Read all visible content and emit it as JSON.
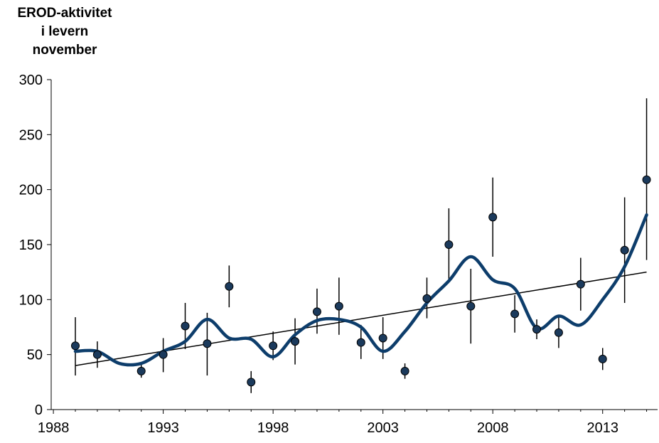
{
  "chart_data": {
    "type": "scatter",
    "title": "",
    "ylabel_lines": [
      "EROD-aktivitet",
      "i levern",
      "november"
    ],
    "xlabel": "",
    "xlim": [
      1987.9,
      2015.5
    ],
    "ylim": [
      0,
      300
    ],
    "x_ticks": [
      1988,
      1993,
      1998,
      2003,
      2008,
      2013
    ],
    "x_tick_labels": [
      "1988",
      "1993",
      "1998",
      "2003",
      "2008",
      "2013"
    ],
    "y_ticks": [
      0,
      50,
      100,
      150,
      200,
      250,
      300
    ],
    "y_tick_labels": [
      "0",
      "50",
      "100",
      "150",
      "200",
      "250",
      "300"
    ],
    "grid": false,
    "colors": {
      "points": "#1b3a5c",
      "smooth": "#0d3d6b",
      "trend": "#000000",
      "errorbars": "#000000"
    },
    "points": [
      {
        "x": 1989,
        "y": 58,
        "low": 31,
        "high": 84
      },
      {
        "x": 1990,
        "y": 50,
        "low": 38,
        "high": 62
      },
      {
        "x": 1992,
        "y": 35,
        "low": 29,
        "high": 41
      },
      {
        "x": 1993,
        "y": 50,
        "low": 34,
        "high": 65
      },
      {
        "x": 1994,
        "y": 76,
        "low": 55,
        "high": 97
      },
      {
        "x": 1995,
        "y": 60,
        "low": 31,
        "high": 88
      },
      {
        "x": 1996,
        "y": 112,
        "low": 93,
        "high": 131
      },
      {
        "x": 1997,
        "y": 25,
        "low": 15,
        "high": 35
      },
      {
        "x": 1998,
        "y": 58,
        "low": 45,
        "high": 71
      },
      {
        "x": 1999,
        "y": 62,
        "low": 41,
        "high": 83
      },
      {
        "x": 2000,
        "y": 89,
        "low": 69,
        "high": 110
      },
      {
        "x": 2001,
        "y": 94,
        "low": 68,
        "high": 120
      },
      {
        "x": 2002,
        "y": 61,
        "low": 46,
        "high": 77
      },
      {
        "x": 2003,
        "y": 65,
        "low": 46,
        "high": 84
      },
      {
        "x": 2004,
        "y": 35,
        "low": 28,
        "high": 42
      },
      {
        "x": 2005,
        "y": 101,
        "low": 83,
        "high": 120
      },
      {
        "x": 2006,
        "y": 150,
        "low": 117,
        "high": 183
      },
      {
        "x": 2007,
        "y": 94,
        "low": 60,
        "high": 128
      },
      {
        "x": 2008,
        "y": 175,
        "low": 139,
        "high": 211
      },
      {
        "x": 2009,
        "y": 87,
        "low": 70,
        "high": 104
      },
      {
        "x": 2010,
        "y": 73,
        "low": 64,
        "high": 82
      },
      {
        "x": 2011,
        "y": 70,
        "low": 56,
        "high": 85
      },
      {
        "x": 2012,
        "y": 114,
        "low": 90,
        "high": 138
      },
      {
        "x": 2013,
        "y": 46,
        "low": 36,
        "high": 56
      },
      {
        "x": 2014,
        "y": 145,
        "low": 97,
        "high": 193
      },
      {
        "x": 2015,
        "y": 209,
        "low": 136,
        "high": 283
      }
    ],
    "trend_line": {
      "x": [
        1989,
        2015
      ],
      "y": [
        40,
        125
      ]
    },
    "smooth_line": {
      "x": [
        1989,
        1990,
        1991,
        1992,
        1993,
        1994,
        1995,
        1996,
        1997,
        1998,
        1999,
        2000,
        2001,
        2002,
        2003,
        2004,
        2005,
        2006,
        2007,
        2008,
        2009,
        2010,
        2011,
        2012,
        2013,
        2014,
        2015
      ],
      "y": [
        53,
        53,
        42,
        42,
        53,
        62,
        82,
        65,
        64,
        48,
        68,
        81,
        82,
        75,
        53,
        71,
        97,
        117,
        139,
        118,
        110,
        74,
        85,
        77,
        100,
        130,
        177
      ]
    }
  }
}
